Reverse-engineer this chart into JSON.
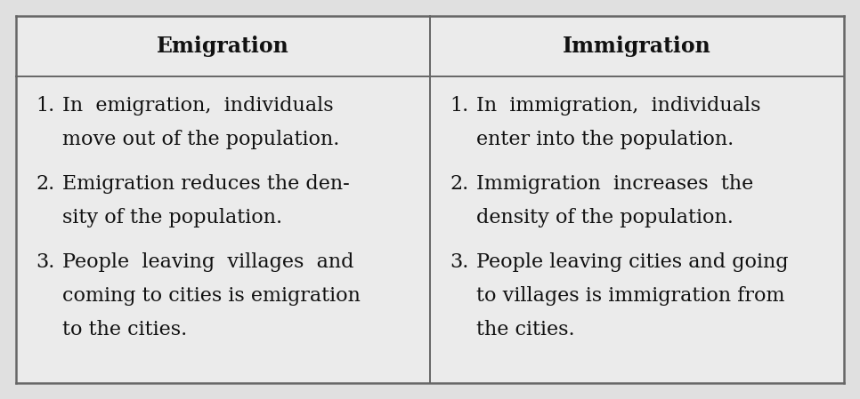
{
  "background_color": "#e0e0e0",
  "cell_bg": "#ebebeb",
  "header_text_color": "#111111",
  "body_text_color": "#111111",
  "line_color": "#666666",
  "col1_header": "Emigration",
  "col2_header": "Immigration",
  "col1_items": [
    {
      "num": "1.",
      "lines": [
        "In  emigration,  individuals",
        "move out of the population."
      ]
    },
    {
      "num": "2.",
      "lines": [
        "Emigration reduces the den-",
        "sity of the population."
      ]
    },
    {
      "num": "3.",
      "lines": [
        "People  leaving  villages  and",
        "coming to cities is emigration",
        "to the cities."
      ]
    }
  ],
  "col2_items": [
    {
      "num": "1.",
      "lines": [
        "In  immigration,  individuals",
        "enter into the population."
      ]
    },
    {
      "num": "2.",
      "lines": [
        "Immigration  increases  the",
        "density of the population."
      ]
    },
    {
      "num": "3.",
      "lines": [
        "People leaving cities and going",
        "to villages is immigration from",
        "the cities."
      ]
    }
  ],
  "header_fontsize": 17,
  "body_fontsize": 16,
  "fig_width": 9.66,
  "fig_height": 4.49,
  "dpi": 100
}
